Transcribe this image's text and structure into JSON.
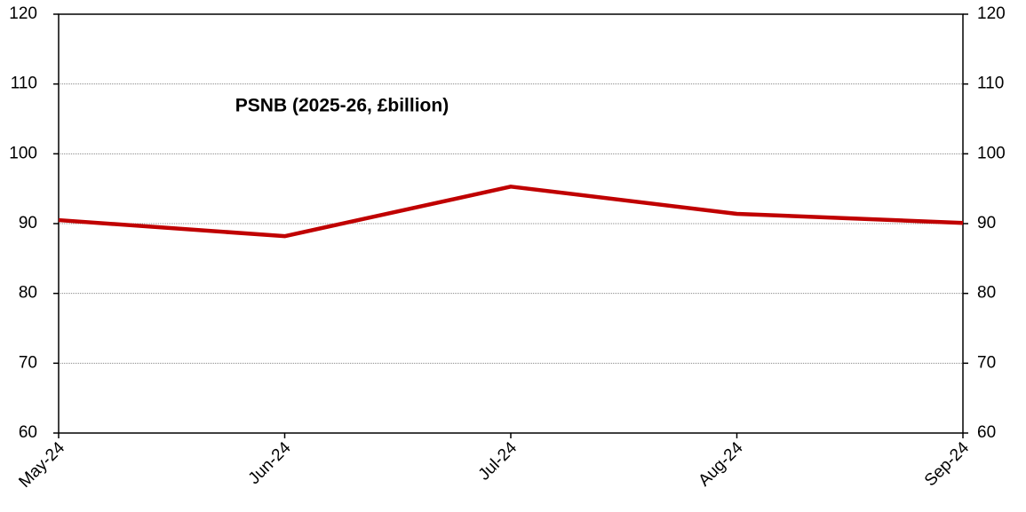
{
  "chart_data": {
    "type": "line",
    "title": "PSNB (2025-26, £billion)",
    "categories": [
      "May-24",
      "Jun-24",
      "Jul-24",
      "Aug-24",
      "Sep-24"
    ],
    "series": [
      {
        "name": "PSNB",
        "color": "#c00000",
        "values": [
          90.5,
          88.2,
          95.3,
          91.4,
          90.1
        ]
      }
    ],
    "ylim": [
      60,
      120
    ],
    "yticks": [
      60,
      70,
      80,
      90,
      100,
      110,
      120
    ],
    "y2lim": [
      60,
      120
    ],
    "y2ticks": [
      60,
      70,
      80,
      90,
      100,
      110,
      120
    ],
    "grid": true
  }
}
